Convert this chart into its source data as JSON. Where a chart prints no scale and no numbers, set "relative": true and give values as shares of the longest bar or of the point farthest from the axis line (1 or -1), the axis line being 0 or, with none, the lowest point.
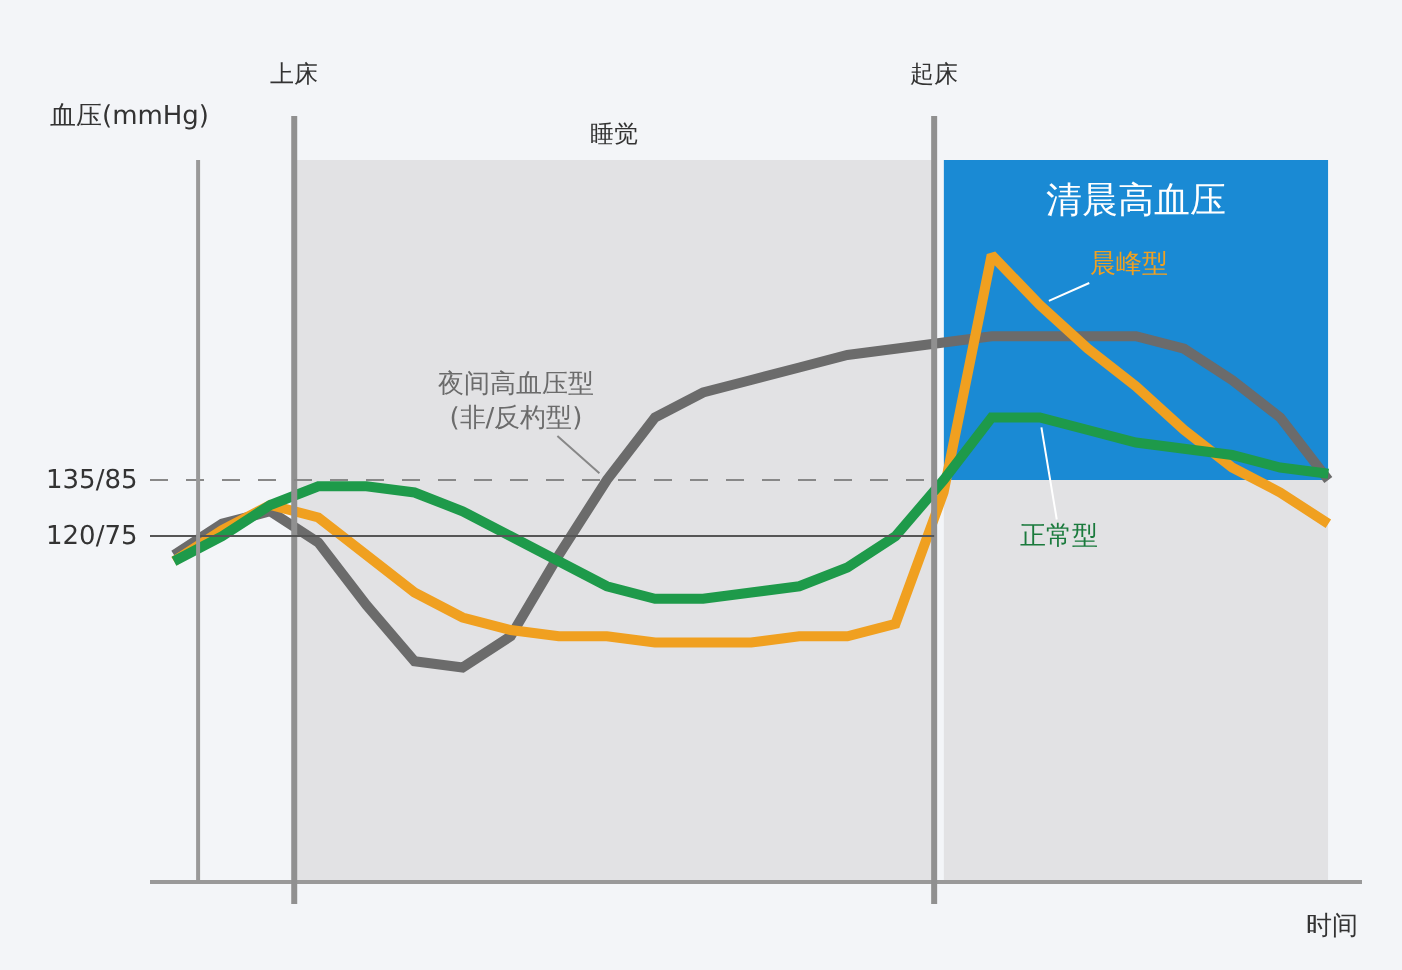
{
  "chart_data": {
    "type": "line",
    "relative": true,
    "xlabel": "时间",
    "ylabel": "血压(mmHg)",
    "legend": false,
    "marker": "none",
    "line_style": "solid",
    "categories": [
      null,
      null,
      null,
      null,
      null,
      null,
      null,
      null,
      null,
      null,
      null,
      null,
      null,
      null,
      null,
      null,
      null,
      null,
      null,
      null,
      null,
      null,
      null,
      null,
      null
    ],
    "series": [
      {
        "name": "夜间高血压型\n(非/反杓型)",
        "color": "#6b6b6b",
        "values": [
          0.52,
          0.57,
          0.59,
          0.54,
          0.44,
          0.35,
          0.34,
          0.39,
          0.52,
          0.64,
          0.74,
          0.78,
          0.8,
          0.82,
          0.84,
          0.85,
          0.86,
          0.87,
          0.87,
          0.87,
          0.87,
          0.85,
          0.8,
          0.74,
          0.64
        ]
      },
      {
        "name": "晨峰型",
        "color": "#f0a020",
        "values": [
          0.51,
          0.56,
          0.6,
          0.58,
          0.52,
          0.46,
          0.42,
          0.4,
          0.39,
          0.39,
          0.38,
          0.38,
          0.38,
          0.39,
          0.39,
          0.41,
          0.62,
          1.0,
          0.92,
          0.85,
          0.79,
          0.72,
          0.66,
          0.62,
          0.57
        ]
      },
      {
        "name": "正常型",
        "color": "#1e9a4a",
        "values": [
          0.51,
          0.55,
          0.6,
          0.63,
          0.63,
          0.62,
          0.59,
          0.55,
          0.51,
          0.47,
          0.45,
          0.45,
          0.46,
          0.47,
          0.5,
          0.55,
          0.64,
          0.74,
          0.74,
          0.72,
          0.7,
          0.69,
          0.68,
          0.66,
          0.65
        ]
      }
    ],
    "annotations": [
      "上床",
      "起床",
      "睡觉",
      "清晨高血压",
      "135/85",
      "120/75"
    ]
  }
}
